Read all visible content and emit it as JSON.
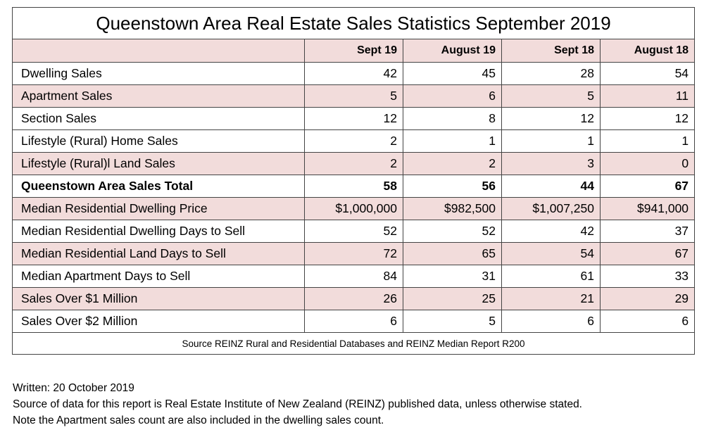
{
  "title": "Queenstown Area Real Estate Sales Statistics September 2019",
  "columns": [
    "",
    "Sept 19",
    "August 19",
    "Sept 18",
    "August 18"
  ],
  "rows": [
    {
      "label": "Dwelling Sales",
      "values": [
        "42",
        "45",
        "28",
        "54"
      ],
      "shaded": false,
      "bold": false
    },
    {
      "label": "Apartment Sales",
      "values": [
        "5",
        "6",
        "5",
        "11"
      ],
      "shaded": true,
      "bold": false
    },
    {
      "label": "Section Sales",
      "values": [
        "12",
        "8",
        "12",
        "12"
      ],
      "shaded": false,
      "bold": false
    },
    {
      "label": "Lifestyle (Rural) Home Sales",
      "values": [
        "2",
        "1",
        "1",
        "1"
      ],
      "shaded": false,
      "bold": false
    },
    {
      "label": "Lifestyle (Rural)l Land Sales",
      "values": [
        "2",
        "2",
        "3",
        "0"
      ],
      "shaded": true,
      "bold": false
    },
    {
      "label": "Queenstown Area Sales Total",
      "values": [
        "58",
        "56",
        "44",
        "67"
      ],
      "shaded": false,
      "bold": true
    },
    {
      "label": "Median Residential Dwelling Price",
      "values": [
        "$1,000,000",
        "$982,500",
        "$1,007,250",
        "$941,000"
      ],
      "shaded": true,
      "bold": false
    },
    {
      "label": "Median Residential Dwelling Days to Sell",
      "values": [
        "52",
        "52",
        "42",
        "37"
      ],
      "shaded": false,
      "bold": false
    },
    {
      "label": "Median Residential Land Days to Sell",
      "values": [
        "72",
        "65",
        "54",
        "67"
      ],
      "shaded": true,
      "bold": false
    },
    {
      "label": "Median Apartment Days to Sell",
      "values": [
        "84",
        "31",
        "61",
        "33"
      ],
      "shaded": false,
      "bold": false
    },
    {
      "label": "Sales Over $1 Million",
      "values": [
        "26",
        "25",
        "21",
        "29"
      ],
      "shaded": true,
      "bold": false
    },
    {
      "label": "Sales Over $2 Million",
      "values": [
        "6",
        "5",
        "6",
        "6"
      ],
      "shaded": false,
      "bold": false
    }
  ],
  "source": "Source REINZ Rural and Residential Databases and REINZ Median Report R200",
  "footer": {
    "written": "Written: 20 October 2019",
    "source_note": "Source of data for this report is Real Estate Institute of New Zealand (REINZ) published data, unless otherwise stated.",
    "apartment_note": "Note the Apartment sales count are also included in the dwelling sales count."
  },
  "colors": {
    "shade": "#f2dcdb",
    "border": "#444444"
  }
}
